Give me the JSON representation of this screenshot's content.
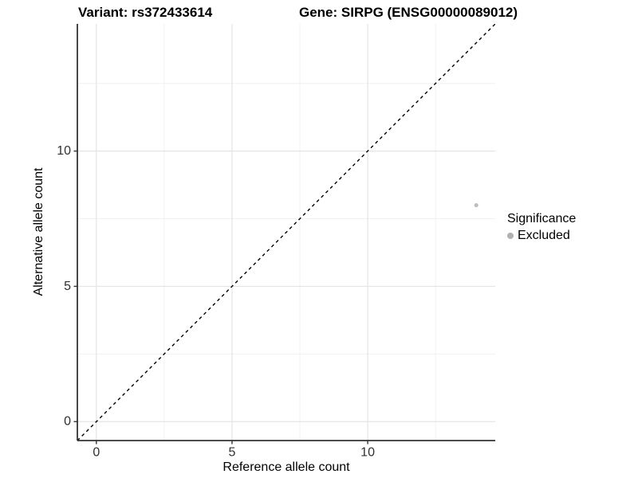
{
  "chart_data": {
    "type": "scatter",
    "titles": [
      {
        "text": "Variant: rs372433614"
      },
      {
        "text": "Gene: SIRPG (ENSG00000089012)"
      }
    ],
    "xlabel": "Reference allele count",
    "ylabel": "Alternative allele count",
    "xlim": [
      -0.7,
      14.7
    ],
    "ylim": [
      -0.7,
      14.7
    ],
    "x_major_ticks": [
      0,
      5,
      10
    ],
    "y_major_ticks": [
      0,
      5,
      10
    ],
    "x_minor_ticks": [
      2.5,
      7.5,
      12.5
    ],
    "y_minor_ticks": [
      2.5,
      7.5,
      12.5
    ],
    "grid": "major-and-minor",
    "series": [
      {
        "name": "Excluded",
        "color": "#bebebe",
        "points": [
          {
            "x": 14,
            "y": 8
          }
        ]
      }
    ],
    "reference_line": {
      "type": "identity",
      "slope": 1,
      "intercept": 0,
      "style": "dashed",
      "color": "#000000"
    },
    "legend": {
      "title": "Significance",
      "position": "right",
      "entries": [
        {
          "label": "Excluded",
          "color": "#b0b0b0"
        }
      ]
    },
    "colors": {
      "axis_line": "#333333",
      "tick_mark": "#333333",
      "tick_label": "#303030",
      "grid_major": "#e4e4e4",
      "grid_minor": "#f1f1f1",
      "background": "#ffffff"
    }
  }
}
